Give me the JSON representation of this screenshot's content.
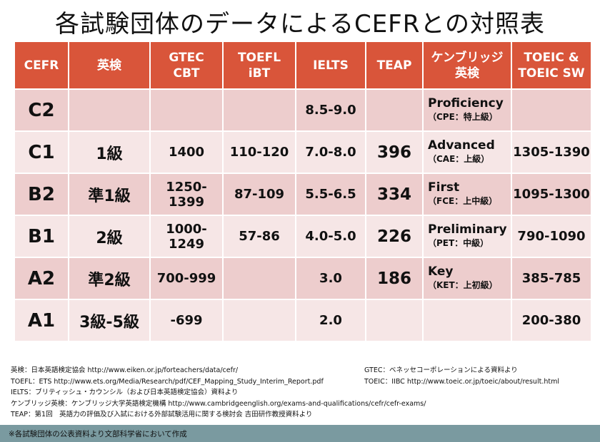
{
  "title": "各試験団体のデータによるCEFRとの対照表",
  "table": {
    "headers": [
      "CEFR",
      "英検",
      "GTEC\nCBT",
      "TOEFL\niBT",
      "IELTS",
      "TEAP",
      "ケンブリッジ\n英検",
      "TOEIC &\nTOEIC SW"
    ],
    "rows": [
      {
        "level": "C2",
        "eiken": "",
        "gtec": "",
        "toefl": "",
        "ielts": "8.5-9.0",
        "teap": "",
        "cam_main": "Proficiency",
        "cam_sub": "（CPE：特上級）",
        "toeic": ""
      },
      {
        "level": "C1",
        "eiken": "1級",
        "gtec": "1400",
        "toefl": "110-120",
        "ielts": "7.0-8.0",
        "teap": "396",
        "cam_main": "Advanced",
        "cam_sub": "（CAE：上級）",
        "toeic": "1305-1390"
      },
      {
        "level": "B2",
        "eiken": "準1級",
        "gtec": "1250-\n1399",
        "toefl": "87-109",
        "ielts": "5.5-6.5",
        "teap": "334",
        "cam_main": "First",
        "cam_sub": "（FCE：上中級）",
        "toeic": "1095-1300"
      },
      {
        "level": "B1",
        "eiken": "2級",
        "gtec": "1000-\n1249",
        "toefl": "57-86",
        "ielts": "4.0-5.0",
        "teap": "226",
        "cam_main": "Preliminary",
        "cam_sub": "（PET：中級）",
        "toeic": "790-1090"
      },
      {
        "level": "A2",
        "eiken": "準2級",
        "gtec": "700-999",
        "toefl": "",
        "ielts": "3.0",
        "teap": "186",
        "cam_main": "Key",
        "cam_sub": "（KET：上初級）",
        "toeic": "385-785"
      },
      {
        "level": "A1",
        "eiken": "3級-5級",
        "gtec": "-699",
        "toefl": "",
        "ielts": "2.0",
        "teap": "",
        "cam_main": "",
        "cam_sub": "",
        "toeic": "200-380"
      }
    ]
  },
  "notes_left": [
    "英検：日本英語検定協会 http://www.eiken.or.jp/forteachers/data/cefr/",
    "TOEFL：ETS http://www.ets.org/Media/Research/pdf/CEF_Mapping_Study_Interim_Report.pdf",
    "IELTS：ブリティッシュ・カウンシル（および日本英語検定協会）資料より",
    "ケンブリッジ英検：ケンブリッジ大学英語検定機構 http://www.cambridgeenglish.org/exams-and-qualifications/cefr/cefr-exams/",
    "TEAP：第1回　英語力の評価及び入試における外部試験活用に関する検討会 吉田研作教授資料より"
  ],
  "notes_right": [
    "GTEC：ベネッセコーポレーションによる資料より",
    "TOEIC：IIBC http://www.toeic.or.jp/toeic/about/result.html"
  ],
  "footer": "※各試験団体の公表資料より文部科学省において作成",
  "colors": {
    "header_bg": "#d9553a",
    "row_dark": "#edcdcd",
    "row_light": "#f6e6e6",
    "footer_bg": "#7a9aa0"
  }
}
